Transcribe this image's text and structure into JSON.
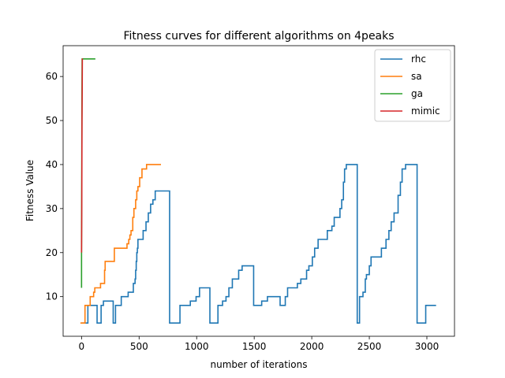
{
  "chart_data": {
    "type": "line",
    "title": "Fitness curves for different algorithms on 4peaks",
    "xlabel": "number of iterations",
    "ylabel": "Fitness Value",
    "xlim": [
      -160,
      3240
    ],
    "ylim": [
      1,
      67
    ],
    "xticks": [
      0,
      500,
      1000,
      1500,
      2000,
      2500,
      3000
    ],
    "yticks": [
      10,
      20,
      30,
      40,
      50,
      60
    ],
    "grid": false,
    "legend_position": "top-right",
    "series": [
      {
        "name": "rhc",
        "color": "#1f77b4",
        "step": true,
        "points": [
          [
            0,
            4
          ],
          [
            50,
            4
          ],
          [
            55,
            8
          ],
          [
            130,
            8
          ],
          [
            135,
            4
          ],
          [
            165,
            4
          ],
          [
            170,
            8
          ],
          [
            185,
            8
          ],
          [
            190,
            9
          ],
          [
            270,
            9
          ],
          [
            275,
            4
          ],
          [
            290,
            4
          ],
          [
            295,
            8
          ],
          [
            340,
            8
          ],
          [
            345,
            10
          ],
          [
            400,
            10
          ],
          [
            405,
            11
          ],
          [
            445,
            11
          ],
          [
            450,
            13
          ],
          [
            460,
            13
          ],
          [
            465,
            14
          ],
          [
            470,
            16
          ],
          [
            475,
            18
          ],
          [
            480,
            20
          ],
          [
            485,
            21
          ],
          [
            490,
            23
          ],
          [
            530,
            23
          ],
          [
            535,
            25
          ],
          [
            555,
            25
          ],
          [
            560,
            27
          ],
          [
            580,
            29
          ],
          [
            600,
            31
          ],
          [
            620,
            32
          ],
          [
            640,
            34
          ],
          [
            760,
            34
          ],
          [
            765,
            4
          ],
          [
            850,
            4
          ],
          [
            855,
            8
          ],
          [
            940,
            8
          ],
          [
            945,
            9
          ],
          [
            990,
            9
          ],
          [
            995,
            10
          ],
          [
            1020,
            10
          ],
          [
            1025,
            12
          ],
          [
            1110,
            12
          ],
          [
            1115,
            4
          ],
          [
            1180,
            4
          ],
          [
            1185,
            8
          ],
          [
            1220,
            8
          ],
          [
            1225,
            9
          ],
          [
            1250,
            9
          ],
          [
            1255,
            10
          ],
          [
            1275,
            10
          ],
          [
            1280,
            12
          ],
          [
            1305,
            12
          ],
          [
            1310,
            14
          ],
          [
            1360,
            14
          ],
          [
            1365,
            16
          ],
          [
            1390,
            16
          ],
          [
            1395,
            17
          ],
          [
            1490,
            17
          ],
          [
            1495,
            8
          ],
          [
            1560,
            8
          ],
          [
            1565,
            9
          ],
          [
            1610,
            9
          ],
          [
            1615,
            10
          ],
          [
            1720,
            10
          ],
          [
            1725,
            8
          ],
          [
            1765,
            8
          ],
          [
            1770,
            10
          ],
          [
            1785,
            10
          ],
          [
            1790,
            12
          ],
          [
            1870,
            12
          ],
          [
            1875,
            13
          ],
          [
            1900,
            13
          ],
          [
            1905,
            14
          ],
          [
            1950,
            14
          ],
          [
            1955,
            16
          ],
          [
            1970,
            16
          ],
          [
            1975,
            17
          ],
          [
            2000,
            17
          ],
          [
            2005,
            19
          ],
          [
            2020,
            19
          ],
          [
            2025,
            21
          ],
          [
            2050,
            21
          ],
          [
            2055,
            23
          ],
          [
            2130,
            23
          ],
          [
            2135,
            25
          ],
          [
            2170,
            25
          ],
          [
            2175,
            26
          ],
          [
            2190,
            26
          ],
          [
            2195,
            28
          ],
          [
            2240,
            28
          ],
          [
            2245,
            30
          ],
          [
            2260,
            32
          ],
          [
            2275,
            36
          ],
          [
            2285,
            39
          ],
          [
            2300,
            40
          ],
          [
            2390,
            40
          ],
          [
            2395,
            4
          ],
          [
            2415,
            10
          ],
          [
            2445,
            11
          ],
          [
            2465,
            14
          ],
          [
            2475,
            15
          ],
          [
            2500,
            17
          ],
          [
            2510,
            17
          ],
          [
            2515,
            19
          ],
          [
            2600,
            19
          ],
          [
            2605,
            21
          ],
          [
            2640,
            21
          ],
          [
            2645,
            23
          ],
          [
            2670,
            25
          ],
          [
            2690,
            27
          ],
          [
            2715,
            29
          ],
          [
            2750,
            33
          ],
          [
            2770,
            36
          ],
          [
            2785,
            39
          ],
          [
            2815,
            40
          ],
          [
            2910,
            40
          ],
          [
            2915,
            4
          ],
          [
            2985,
            4
          ],
          [
            2990,
            8
          ],
          [
            3080,
            8
          ]
        ]
      },
      {
        "name": "sa",
        "color": "#ff7f0e",
        "step": true,
        "points": [
          [
            -10,
            4
          ],
          [
            25,
            4
          ],
          [
            30,
            8
          ],
          [
            70,
            8
          ],
          [
            75,
            10
          ],
          [
            100,
            10
          ],
          [
            105,
            11
          ],
          [
            110,
            11
          ],
          [
            115,
            12
          ],
          [
            160,
            12
          ],
          [
            165,
            13
          ],
          [
            195,
            13
          ],
          [
            200,
            16
          ],
          [
            205,
            18
          ],
          [
            280,
            18
          ],
          [
            285,
            21
          ],
          [
            390,
            21
          ],
          [
            395,
            22
          ],
          [
            410,
            23
          ],
          [
            420,
            24
          ],
          [
            430,
            25
          ],
          [
            445,
            28
          ],
          [
            455,
            30
          ],
          [
            470,
            32
          ],
          [
            480,
            34
          ],
          [
            490,
            35
          ],
          [
            505,
            37
          ],
          [
            525,
            39
          ],
          [
            560,
            39
          ],
          [
            565,
            40
          ],
          [
            690,
            40
          ]
        ]
      },
      {
        "name": "ga",
        "color": "#2ca02c",
        "step": false,
        "points": [
          [
            0,
            12
          ],
          [
            0,
            20
          ],
          [
            2,
            40
          ],
          [
            4,
            58
          ],
          [
            5,
            64
          ],
          [
            120,
            64
          ]
        ]
      },
      {
        "name": "mimic",
        "color": "#d62728",
        "step": false,
        "points": [
          [
            0,
            20
          ],
          [
            2,
            30
          ],
          [
            4,
            50
          ],
          [
            6,
            58
          ],
          [
            7,
            64
          ],
          [
            10,
            64
          ]
        ]
      }
    ]
  }
}
